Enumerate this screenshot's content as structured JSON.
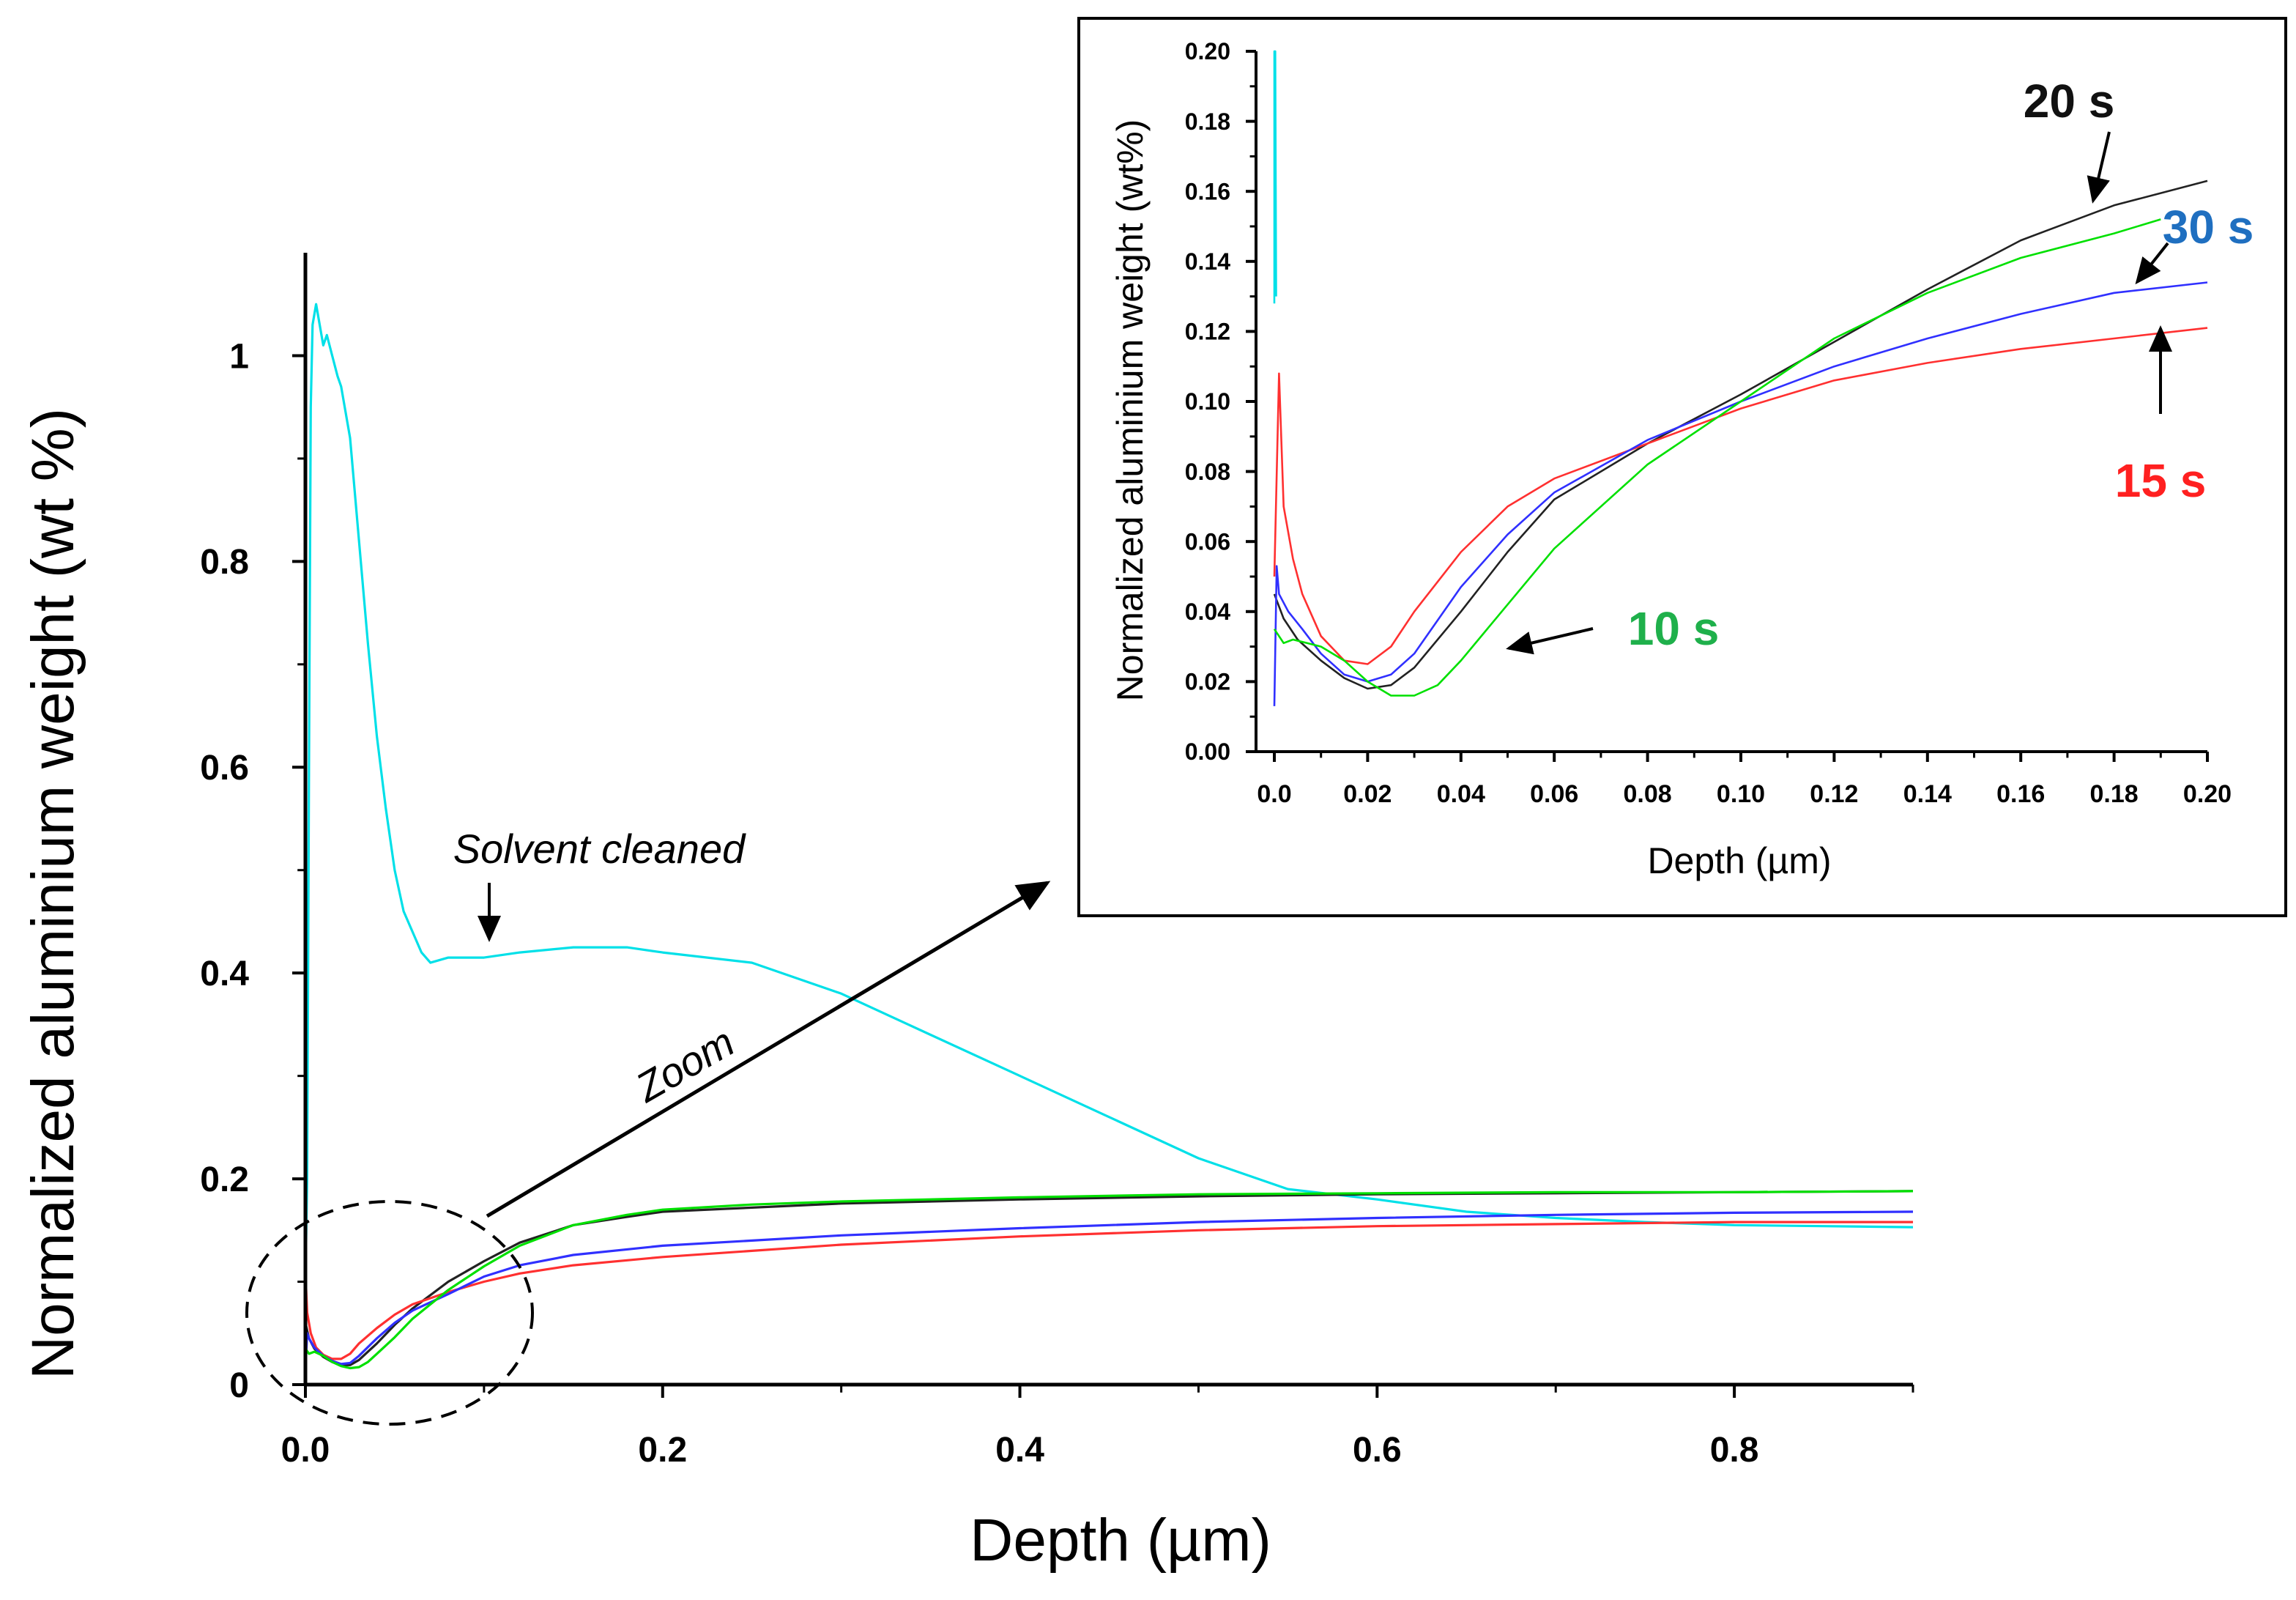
{
  "chart_data": [
    {
      "id": "main",
      "type": "line",
      "title": "",
      "xlabel": "Depth (µm)",
      "ylabel": "Normalized aluminium weight (wt %)",
      "xlim": [
        0,
        0.9
      ],
      "ylim": [
        0,
        1.1
      ],
      "xticks": [
        0.0,
        0.2,
        0.4,
        0.6,
        0.8
      ],
      "xtick_labels": [
        "0.0",
        "0.2",
        "0.4",
        "0.6",
        "0.8"
      ],
      "yticks": [
        0,
        0.2,
        0.4,
        0.6,
        0.8,
        1
      ],
      "ytick_labels": [
        "0",
        "0.2",
        "0.4",
        "0.6",
        "0.8",
        "1"
      ],
      "grid": false,
      "series": [
        {
          "name": "Solvent cleaned",
          "color": "#00e0e8",
          "x": [
            0,
            0.001,
            0.002,
            0.003,
            0.004,
            0.006,
            0.008,
            0.01,
            0.012,
            0.015,
            0.018,
            0.02,
            0.025,
            0.03,
            0.035,
            0.04,
            0.045,
            0.05,
            0.055,
            0.06,
            0.065,
            0.07,
            0.08,
            0.1,
            0.12,
            0.15,
            0.18,
            0.2,
            0.25,
            0.3,
            0.35,
            0.4,
            0.45,
            0.5,
            0.55,
            0.6,
            0.65,
            0.7,
            0.75,
            0.8,
            0.85,
            0.9
          ],
          "y": [
            0.1,
            0.2,
            0.6,
            0.95,
            1.03,
            1.05,
            1.03,
            1.01,
            1.02,
            1.0,
            0.98,
            0.97,
            0.92,
            0.82,
            0.72,
            0.63,
            0.56,
            0.5,
            0.46,
            0.44,
            0.42,
            0.41,
            0.415,
            0.415,
            0.42,
            0.425,
            0.425,
            0.42,
            0.41,
            0.38,
            0.34,
            0.3,
            0.26,
            0.22,
            0.19,
            0.18,
            0.168,
            0.162,
            0.158,
            0.155,
            0.154,
            0.153
          ]
        },
        {
          "name": "20 s",
          "color": "#222222",
          "x": [
            0,
            0.002,
            0.005,
            0.01,
            0.015,
            0.02,
            0.025,
            0.03,
            0.04,
            0.05,
            0.06,
            0.08,
            0.1,
            0.12,
            0.15,
            0.18,
            0.2,
            0.25,
            0.3,
            0.4,
            0.5,
            0.6,
            0.7,
            0.8,
            0.9
          ],
          "y": [
            0.06,
            0.045,
            0.035,
            0.027,
            0.022,
            0.019,
            0.019,
            0.024,
            0.04,
            0.058,
            0.074,
            0.1,
            0.12,
            0.138,
            0.155,
            0.163,
            0.168,
            0.172,
            0.176,
            0.18,
            0.183,
            0.185,
            0.186,
            0.187,
            0.188
          ]
        },
        {
          "name": "15 s",
          "color": "#ff3030",
          "x": [
            0,
            0.001,
            0.003,
            0.006,
            0.01,
            0.015,
            0.02,
            0.025,
            0.03,
            0.04,
            0.05,
            0.06,
            0.08,
            0.1,
            0.12,
            0.15,
            0.2,
            0.25,
            0.3,
            0.4,
            0.5,
            0.6,
            0.7,
            0.8,
            0.9
          ],
          "y": [
            0.108,
            0.07,
            0.05,
            0.036,
            0.029,
            0.025,
            0.025,
            0.03,
            0.04,
            0.055,
            0.068,
            0.078,
            0.09,
            0.1,
            0.108,
            0.116,
            0.124,
            0.13,
            0.136,
            0.144,
            0.15,
            0.154,
            0.156,
            0.158,
            0.158
          ]
        },
        {
          "name": "30 s",
          "color": "#3030ff",
          "x": [
            0,
            0.001,
            0.002,
            0.005,
            0.01,
            0.015,
            0.02,
            0.025,
            0.03,
            0.04,
            0.05,
            0.06,
            0.08,
            0.1,
            0.12,
            0.15,
            0.2,
            0.25,
            0.3,
            0.4,
            0.5,
            0.6,
            0.7,
            0.8,
            0.9
          ],
          "y": [
            0.015,
            0.05,
            0.045,
            0.036,
            0.028,
            0.023,
            0.02,
            0.021,
            0.028,
            0.045,
            0.06,
            0.072,
            0.088,
            0.105,
            0.116,
            0.126,
            0.135,
            0.14,
            0.145,
            0.152,
            0.158,
            0.162,
            0.165,
            0.167,
            0.168
          ]
        },
        {
          "name": "10 s",
          "color": "#00e000",
          "x": [
            0,
            0.002,
            0.005,
            0.01,
            0.015,
            0.02,
            0.025,
            0.03,
            0.035,
            0.04,
            0.05,
            0.06,
            0.07,
            0.08,
            0.1,
            0.12,
            0.15,
            0.18,
            0.2,
            0.25,
            0.3,
            0.4,
            0.5,
            0.6,
            0.7,
            0.8,
            0.9
          ],
          "y": [
            0.035,
            0.03,
            0.032,
            0.028,
            0.022,
            0.018,
            0.016,
            0.017,
            0.022,
            0.03,
            0.046,
            0.064,
            0.078,
            0.092,
            0.115,
            0.135,
            0.155,
            0.165,
            0.17,
            0.175,
            0.178,
            0.182,
            0.185,
            0.186,
            0.187,
            0.187,
            0.188
          ]
        }
      ],
      "annotations": [
        {
          "text": "Solvent cleaned",
          "style": "italic",
          "points_to": [
            0.1,
            0.415
          ]
        },
        {
          "text": "Zoom",
          "style": "italic",
          "from": [
            0.1,
            0.03
          ],
          "to_inset": true
        }
      ]
    },
    {
      "id": "inset",
      "type": "line",
      "title": "",
      "xlabel": "Depth (µm)",
      "ylabel": "Normalized aluminium weight (wt%)",
      "xlim": [
        0,
        0.2
      ],
      "ylim": [
        0,
        0.2
      ],
      "xticks": [
        0.0,
        0.02,
        0.04,
        0.06,
        0.08,
        0.1,
        0.12,
        0.14,
        0.16,
        0.18,
        0.2
      ],
      "xtick_labels": [
        "0.0",
        "0.02",
        "0.04",
        "0.06",
        "0.08",
        "0.10",
        "0.12",
        "0.14",
        "0.16",
        "0.18",
        "0.20"
      ],
      "yticks": [
        0,
        0.02,
        0.04,
        0.06,
        0.08,
        0.1,
        0.12,
        0.14,
        0.16,
        0.18,
        0.2
      ],
      "ytick_labels": [
        "0.00",
        "0.02",
        "0.04",
        "0.06",
        "0.08",
        "0.10",
        "0.12",
        "0.14",
        "0.16",
        "0.18",
        "0.20"
      ],
      "grid": false,
      "series": [
        {
          "name": "Solvent cleaned",
          "color": "#00e0e8",
          "x": [
            0,
            0,
            0.0002,
            0.0004
          ],
          "y": [
            0.128,
            0.2,
            0.2,
            0.13
          ]
        },
        {
          "name": "20 s",
          "color": "#222222",
          "x": [
            0,
            0.002,
            0.005,
            0.01,
            0.015,
            0.02,
            0.025,
            0.03,
            0.04,
            0.05,
            0.06,
            0.08,
            0.1,
            0.12,
            0.14,
            0.16,
            0.18,
            0.2
          ],
          "y": [
            0.045,
            0.038,
            0.032,
            0.026,
            0.021,
            0.018,
            0.019,
            0.024,
            0.04,
            0.057,
            0.072,
            0.088,
            0.102,
            0.117,
            0.132,
            0.146,
            0.156,
            0.163
          ]
        },
        {
          "name": "15 s",
          "color": "#ff3030",
          "x": [
            0,
            0.001,
            0.002,
            0.004,
            0.006,
            0.01,
            0.015,
            0.02,
            0.025,
            0.03,
            0.04,
            0.05,
            0.06,
            0.08,
            0.1,
            0.12,
            0.14,
            0.16,
            0.18,
            0.2
          ],
          "y": [
            0.05,
            0.108,
            0.07,
            0.055,
            0.045,
            0.033,
            0.026,
            0.025,
            0.03,
            0.04,
            0.057,
            0.07,
            0.078,
            0.088,
            0.098,
            0.106,
            0.111,
            0.115,
            0.118,
            0.121
          ]
        },
        {
          "name": "30 s",
          "color": "#3030ff",
          "x": [
            0,
            0.0005,
            0.001,
            0.003,
            0.006,
            0.01,
            0.015,
            0.02,
            0.025,
            0.03,
            0.04,
            0.05,
            0.06,
            0.08,
            0.1,
            0.12,
            0.14,
            0.16,
            0.18,
            0.2
          ],
          "y": [
            0.013,
            0.053,
            0.045,
            0.04,
            0.035,
            0.028,
            0.022,
            0.02,
            0.022,
            0.028,
            0.047,
            0.062,
            0.074,
            0.089,
            0.1,
            0.11,
            0.118,
            0.125,
            0.131,
            0.134
          ]
        },
        {
          "name": "10 s",
          "color": "#00e000",
          "x": [
            0,
            0.002,
            0.004,
            0.007,
            0.01,
            0.015,
            0.02,
            0.025,
            0.03,
            0.035,
            0.04,
            0.05,
            0.06,
            0.08,
            0.1,
            0.12,
            0.14,
            0.16,
            0.18,
            0.19
          ],
          "y": [
            0.035,
            0.031,
            0.032,
            0.031,
            0.03,
            0.026,
            0.02,
            0.016,
            0.016,
            0.019,
            0.026,
            0.042,
            0.058,
            0.082,
            0.1,
            0.118,
            0.131,
            0.141,
            0.148,
            0.152
          ]
        }
      ],
      "annotations": [
        {
          "text": "20 s",
          "color": "#111111",
          "points_to": [
            0.176,
            0.158
          ]
        },
        {
          "text": "30 s",
          "color": "#1f6fc0",
          "points_to": [
            0.184,
            0.133
          ]
        },
        {
          "text": "15 s",
          "color": "#ff2020",
          "points_to": [
            0.19,
            0.12
          ]
        },
        {
          "text": "10 s",
          "color": "#1fb04b",
          "points_to": [
            0.05,
            0.03
          ]
        }
      ]
    }
  ]
}
